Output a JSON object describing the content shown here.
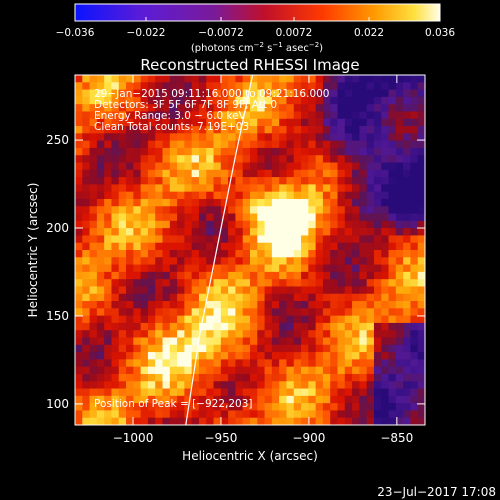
{
  "chart_data": {
    "type": "heatmap",
    "title": "Reconstructed RHESSI Image",
    "xlabel": "Heliocentric X (arcsec)",
    "ylabel": "Heliocentric Y (arcsec)",
    "xlim": [
      -1033,
      -834
    ],
    "ylim": [
      88,
      287
    ],
    "x_ticks": [
      -1000,
      -950,
      -900,
      -850
    ],
    "x_tick_labels": [
      "−1000",
      "−950",
      "−900",
      "−850"
    ],
    "y_ticks": [
      100,
      150,
      200,
      250
    ],
    "y_tick_labels": [
      "100",
      "150",
      "200",
      "250"
    ],
    "colorbar": {
      "range": [
        -0.036,
        0.036
      ],
      "ticks": [
        -0.036,
        -0.022,
        -0.0072,
        0.0072,
        0.022,
        0.036
      ],
      "tick_labels": [
        "−0.036",
        "−0.022",
        "−0.0072",
        "0.0072",
        "0.022",
        "0.036"
      ],
      "unit_base": "(photons cm",
      "unit_exp1": "−2",
      "unit_mid": " s",
      "unit_exp2": "−1",
      "unit_mid2": " asec",
      "unit_exp3": "−2",
      "unit_end": ")"
    },
    "info_lines": [
      "29−Jan−2015 09:11:16.000 to 09:21:16.000",
      "Detectors: 3F 5F 6F 7F 8F 9F, Att 0",
      "Energy Range: 3.0 − 6.0 keV",
      "Clean    Total counts: 7.19E+03"
    ],
    "peak_label": "Position of Peak = [−922,203]",
    "peak": [
      -922,
      203
    ],
    "limb_points": [
      [
        -970,
        88
      ],
      [
        -962,
        140
      ],
      [
        -952,
        190
      ],
      [
        -942,
        240
      ],
      [
        -932,
        287
      ]
    ],
    "grid": false,
    "colormap": "rainbow-hot (blue-purple-red-orange-yellow-white)"
  },
  "footer": {
    "timestamp": "23−Jul−2017 17:08"
  }
}
